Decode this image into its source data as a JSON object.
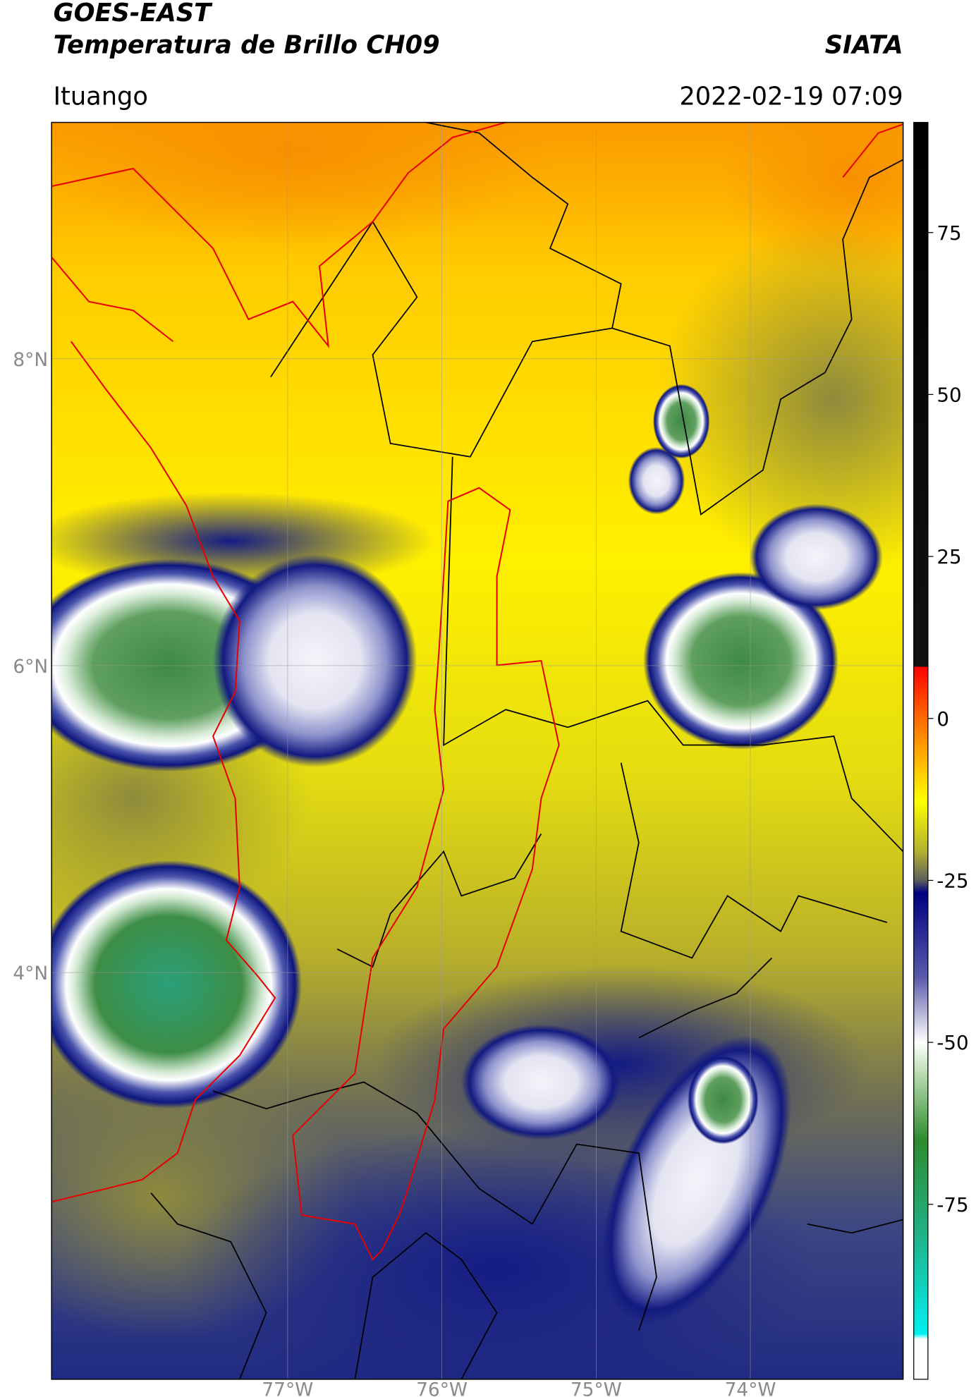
{
  "header": {
    "satellite": "GOES-EAST",
    "product": "Temperatura de Brillo CH09",
    "source": "SIATA",
    "region": "Ituango",
    "datetime": "2022-02-19 07:09"
  },
  "map": {
    "xlim": [
      -78.53,
      -73.01
    ],
    "ylim": [
      1.35,
      9.54
    ],
    "xticks": [
      {
        "value": -77,
        "label": "77°W"
      },
      {
        "value": -76,
        "label": "76°W"
      },
      {
        "value": -75,
        "label": "75°W"
      },
      {
        "value": -74,
        "label": "74°W"
      }
    ],
    "yticks": [
      {
        "value": 8,
        "label": "8°N"
      },
      {
        "value": 6,
        "label": "6°N"
      },
      {
        "value": 4,
        "label": "4°N"
      }
    ],
    "grid": true
  },
  "colorbar": {
    "lim": [
      -102,
      92
    ],
    "ticks": [
      75,
      50,
      25,
      0,
      -25,
      -50,
      -75
    ]
  }
}
